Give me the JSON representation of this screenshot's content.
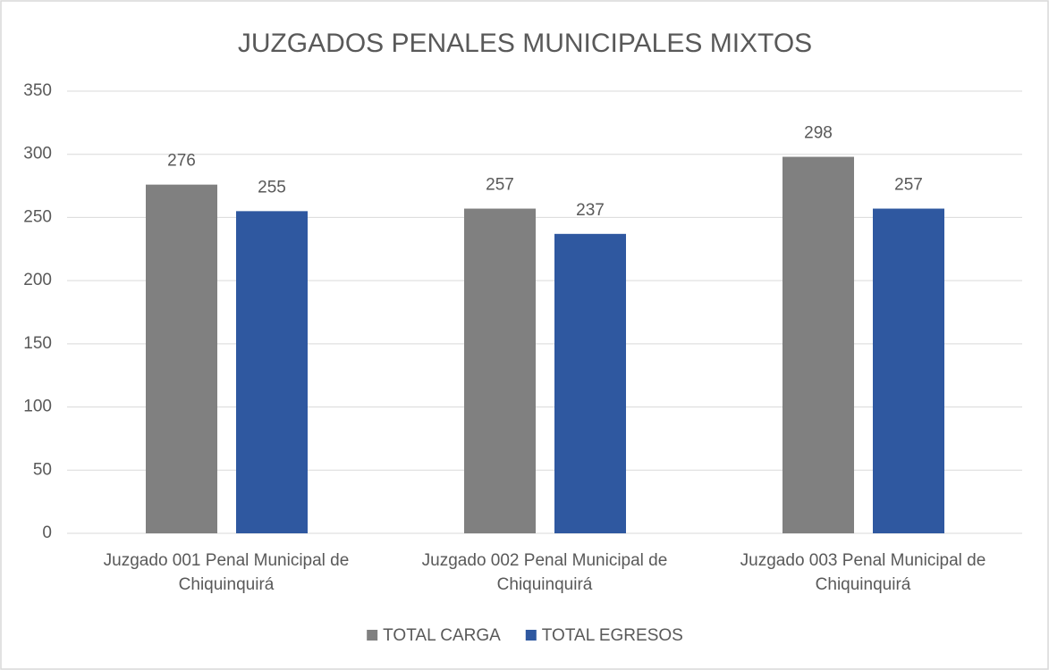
{
  "chart_data": {
    "type": "bar",
    "title": "JUZGADOS PENALES MUNICIPALES MIXTOS",
    "categories": [
      "Juzgado 001 Penal Municipal de Chiquinquirá",
      "Juzgado 002 Penal Municipal de Chiquinquirá",
      "Juzgado 003 Penal Municipal de Chiquinquirá"
    ],
    "series": [
      {
        "name": "TOTAL CARGA",
        "color": "#808080",
        "values": [
          276,
          257,
          298
        ]
      },
      {
        "name": "TOTAL EGRESOS",
        "color": "#2f58a0",
        "values": [
          255,
          237,
          257
        ]
      }
    ],
    "ylim": [
      0,
      350
    ],
    "yticks": [
      0,
      50,
      100,
      150,
      200,
      250,
      300,
      350
    ],
    "grid": true,
    "legend": "bottom"
  }
}
